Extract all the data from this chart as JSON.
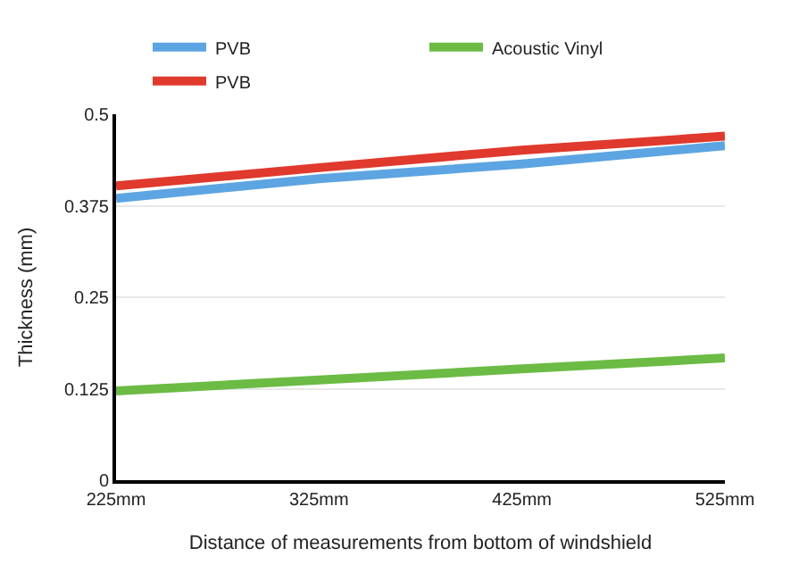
{
  "chart_data": {
    "type": "line",
    "xlabel": "Distance of measurements from bottom of windshield",
    "ylabel": "Thickness (mm)",
    "categories": [
      "225mm",
      "325mm",
      "425mm",
      "525mm"
    ],
    "series": [
      {
        "name": "PVB",
        "color": "#5da5e2",
        "values": [
          0.385,
          0.412,
          0.432,
          0.457
        ]
      },
      {
        "name": "Acoustic Vinyl",
        "color": "#6cbb45",
        "values": [
          0.122,
          0.137,
          0.152,
          0.167
        ]
      },
      {
        "name": "PVB",
        "color": "#e0392d",
        "values": [
          0.402,
          0.427,
          0.451,
          0.47
        ]
      }
    ],
    "ylim": [
      0,
      0.5
    ],
    "yticks": [
      0,
      0.125,
      0.25,
      0.375,
      0.5
    ],
    "grid": "y",
    "legend": "top",
    "marker": "none",
    "line_style": "solid"
  }
}
